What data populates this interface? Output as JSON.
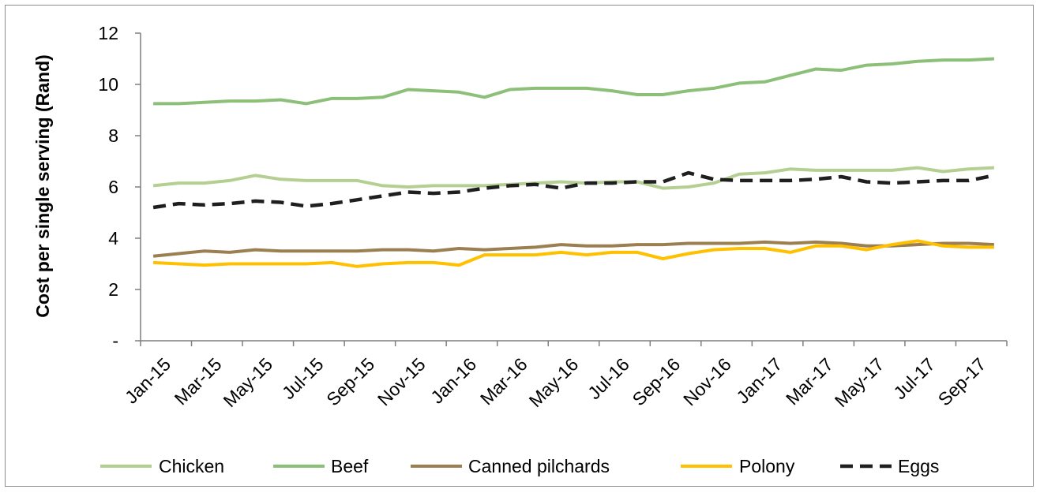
{
  "chart_data": {
    "type": "line",
    "ylabel": "Cost per single serving (Rand)",
    "xlabel": "",
    "ylim": [
      0,
      12
    ],
    "yticks": [
      {
        "value": 0,
        "label": "-"
      },
      {
        "value": 2,
        "label": "2"
      },
      {
        "value": 4,
        "label": "4"
      },
      {
        "value": 6,
        "label": "6"
      },
      {
        "value": 8,
        "label": "8"
      },
      {
        "value": 10,
        "label": "10"
      },
      {
        "value": 12,
        "label": "12"
      }
    ],
    "x": [
      "Jan-15",
      "Feb-15",
      "Mar-15",
      "Apr-15",
      "May-15",
      "Jun-15",
      "Jul-15",
      "Aug-15",
      "Sep-15",
      "Oct-15",
      "Nov-15",
      "Dec-15",
      "Jan-16",
      "Feb-16",
      "Mar-16",
      "Apr-16",
      "May-16",
      "Jun-16",
      "Jul-16",
      "Aug-16",
      "Sep-16",
      "Oct-16",
      "Nov-16",
      "Dec-16",
      "Jan-17",
      "Feb-17",
      "Mar-17",
      "Apr-17",
      "May-17",
      "Jun-17",
      "Jul-17",
      "Aug-17",
      "Sep-17",
      "Oct-17"
    ],
    "xtick_labels": [
      "Jan-15",
      "Mar-15",
      "May-15",
      "Jul-15",
      "Sep-15",
      "Nov-15",
      "Jan-16",
      "Mar-16",
      "May-16",
      "Jul-16",
      "Sep-16",
      "Nov-16",
      "Jan-17",
      "Mar-17",
      "May-17",
      "Jul-17",
      "Sep-17"
    ],
    "grid": false,
    "legend_position": "bottom",
    "series": [
      {
        "name": "Chicken",
        "color": "#b5cf93",
        "dash": false,
        "values": [
          6.05,
          6.15,
          6.15,
          6.25,
          6.45,
          6.3,
          6.25,
          6.25,
          6.25,
          6.05,
          6.0,
          6.05,
          6.05,
          6.05,
          6.1,
          6.15,
          6.2,
          6.15,
          6.2,
          6.2,
          5.95,
          6.0,
          6.15,
          6.5,
          6.55,
          6.7,
          6.65,
          6.65,
          6.65,
          6.65,
          6.75,
          6.6,
          6.7,
          6.75
        ]
      },
      {
        "name": "Beef",
        "color": "#8cbf78",
        "dash": false,
        "values": [
          9.25,
          9.25,
          9.3,
          9.35,
          9.35,
          9.4,
          9.25,
          9.45,
          9.45,
          9.5,
          9.8,
          9.75,
          9.7,
          9.5,
          9.8,
          9.85,
          9.85,
          9.85,
          9.75,
          9.6,
          9.6,
          9.75,
          9.85,
          10.05,
          10.1,
          10.35,
          10.6,
          10.55,
          10.75,
          10.8,
          10.9,
          10.95,
          10.95,
          11.0
        ]
      },
      {
        "name": "Canned pilchards",
        "color": "#9c7f51",
        "dash": false,
        "values": [
          3.3,
          3.4,
          3.5,
          3.45,
          3.55,
          3.5,
          3.5,
          3.5,
          3.5,
          3.55,
          3.55,
          3.5,
          3.6,
          3.55,
          3.6,
          3.65,
          3.75,
          3.7,
          3.7,
          3.75,
          3.75,
          3.8,
          3.8,
          3.8,
          3.85,
          3.8,
          3.85,
          3.8,
          3.7,
          3.7,
          3.75,
          3.8,
          3.8,
          3.75
        ]
      },
      {
        "name": "Polony",
        "color": "#ffc000",
        "dash": false,
        "values": [
          3.05,
          3.0,
          2.95,
          3.0,
          3.0,
          3.0,
          3.0,
          3.05,
          2.9,
          3.0,
          3.05,
          3.05,
          2.95,
          3.35,
          3.35,
          3.35,
          3.45,
          3.35,
          3.45,
          3.45,
          3.2,
          3.4,
          3.55,
          3.6,
          3.6,
          3.45,
          3.7,
          3.7,
          3.55,
          3.75,
          3.9,
          3.7,
          3.65,
          3.65
        ]
      },
      {
        "name": "Eggs",
        "color": "#1f1f1f",
        "dash": true,
        "values": [
          5.2,
          5.35,
          5.3,
          5.35,
          5.45,
          5.4,
          5.25,
          5.35,
          5.5,
          5.65,
          5.8,
          5.75,
          5.8,
          5.95,
          6.05,
          6.1,
          5.95,
          6.15,
          6.15,
          6.2,
          6.2,
          6.55,
          6.3,
          6.25,
          6.25,
          6.25,
          6.3,
          6.4,
          6.2,
          6.15,
          6.2,
          6.25,
          6.25,
          6.45
        ]
      }
    ]
  }
}
